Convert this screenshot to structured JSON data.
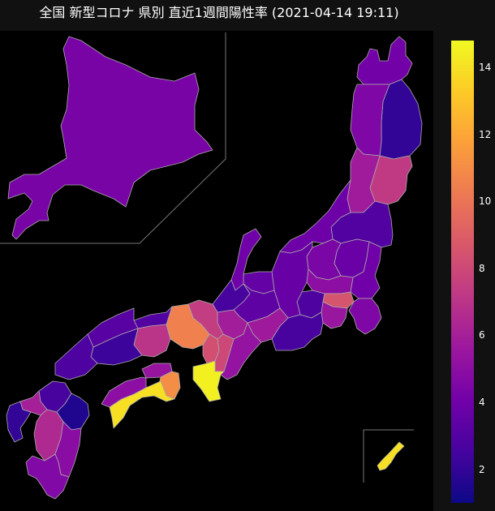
{
  "title": "全国 新型コロナ 県別 直近1週間陽性率 (2021-04-14 19:11)",
  "colorbar": {
    "min": 1.0,
    "max": 14.8,
    "ticks": [
      {
        "value": 2,
        "label": "2"
      },
      {
        "value": 4,
        "label": "4"
      },
      {
        "value": 6,
        "label": "6"
      },
      {
        "value": 8,
        "label": "8"
      },
      {
        "value": 10,
        "label": "10"
      },
      {
        "value": 12,
        "label": "12"
      },
      {
        "value": 14,
        "label": "14"
      }
    ],
    "stops": [
      "#0d0887",
      "#46039f",
      "#7201a8",
      "#9c179e",
      "#bd3786",
      "#d8576b",
      "#ed7953",
      "#fb9f3a",
      "#fdca26",
      "#f0f921"
    ]
  },
  "chart_data": {
    "type": "choropleth",
    "value_range": [
      1.0,
      14.8
    ],
    "regions": [
      {
        "name": "hokkaido",
        "value": 4.3
      },
      {
        "name": "aomori",
        "value": 4.1
      },
      {
        "name": "iwate",
        "value": 2.0
      },
      {
        "name": "akita",
        "value": 4.5
      },
      {
        "name": "miyagi",
        "value": 7.3
      },
      {
        "name": "yamagata",
        "value": 5.8
      },
      {
        "name": "fukushima",
        "value": 3.0
      },
      {
        "name": "niigata",
        "value": 3.9
      },
      {
        "name": "toyama",
        "value": 3.6
      },
      {
        "name": "ishikawa",
        "value": 4.0
      },
      {
        "name": "fukui",
        "value": 2.6
      },
      {
        "name": "tochigi",
        "value": 3.8
      },
      {
        "name": "gunma",
        "value": 4.4
      },
      {
        "name": "ibaraki",
        "value": 4.0
      },
      {
        "name": "nagano",
        "value": 3.7
      },
      {
        "name": "yamanashi",
        "value": 2.8
      },
      {
        "name": "saitama",
        "value": 5.0
      },
      {
        "name": "tokyo",
        "value": 8.5
      },
      {
        "name": "chiba",
        "value": 4.5
      },
      {
        "name": "kanagawa",
        "value": 5.5
      },
      {
        "name": "shizuoka",
        "value": 2.6
      },
      {
        "name": "gifu",
        "value": 3.4
      },
      {
        "name": "aichi",
        "value": 5.7
      },
      {
        "name": "mie",
        "value": 5.3
      },
      {
        "name": "shiga",
        "value": 5.9
      },
      {
        "name": "kyoto",
        "value": 7.4
      },
      {
        "name": "osaka",
        "value": 8.3
      },
      {
        "name": "hyogo",
        "value": 10.5
      },
      {
        "name": "nara",
        "value": 8.0
      },
      {
        "name": "wakayama",
        "value": 14.5
      },
      {
        "name": "tottori",
        "value": 3.0
      },
      {
        "name": "okayama",
        "value": 7.0
      },
      {
        "name": "shimane",
        "value": 3.2
      },
      {
        "name": "hiroshima",
        "value": 2.3
      },
      {
        "name": "yamaguchi",
        "value": 2.8
      },
      {
        "name": "kagawa",
        "value": 5.4
      },
      {
        "name": "tokushima",
        "value": 11.0
      },
      {
        "name": "ehime",
        "value": 5.0
      },
      {
        "name": "kochi",
        "value": 14.0
      },
      {
        "name": "fukuoka",
        "value": 2.6
      },
      {
        "name": "saga",
        "value": 6.0
      },
      {
        "name": "nagasaki",
        "value": 2.0
      },
      {
        "name": "oita",
        "value": 1.5
      },
      {
        "name": "kumamoto",
        "value": 6.5
      },
      {
        "name": "miyazaki",
        "value": 4.9
      },
      {
        "name": "kagoshima",
        "value": 4.6
      },
      {
        "name": "okinawa",
        "value": 14.0
      }
    ]
  }
}
